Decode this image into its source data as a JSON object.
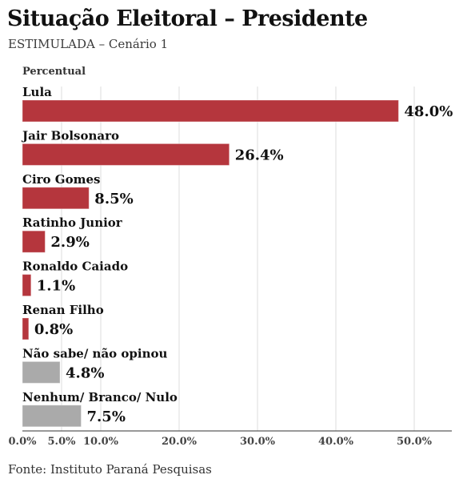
{
  "title": "Situação Eleitoral – Presidente",
  "subtitle": "ESTIMULADA – Cenário 1",
  "source": "Fonte: Instituto Paraná Pesquisas",
  "colors": {
    "candidate": "#b5363d",
    "other": "#aaaaaa",
    "grid": "#dedede",
    "axis": "#333333"
  },
  "chart_data": {
    "type": "bar",
    "orientation": "horizontal",
    "ylabel": "Percentual",
    "categories": [
      "Lula",
      "Jair Bolsonaro",
      "Ciro Gomes",
      "Ratinho Junior",
      "Ronaldo Caiado",
      "Renan Filho",
      "Não sabe/ não opinou",
      "Nenhum/ Branco/ Nulo"
    ],
    "values": [
      48.0,
      26.4,
      8.5,
      2.9,
      1.1,
      0.8,
      4.8,
      7.5
    ],
    "value_labels": [
      "48.0%",
      "26.4%",
      "8.5%",
      "2.9%",
      "1.1%",
      "0.8%",
      "4.8%",
      "7.5%"
    ],
    "bar_colors": [
      "candidate",
      "candidate",
      "candidate",
      "candidate",
      "candidate",
      "candidate",
      "other",
      "other"
    ],
    "xlim": [
      0,
      55
    ],
    "xticks": [
      0,
      5,
      10,
      20,
      30,
      40,
      50
    ],
    "xtick_labels": [
      "0.0%",
      "5.0%",
      "10.0%",
      "20.0%",
      "30.0%",
      "40.0%",
      "50.0%"
    ],
    "gridlines": [
      5,
      10,
      20,
      30,
      40,
      50
    ],
    "grid": true
  }
}
